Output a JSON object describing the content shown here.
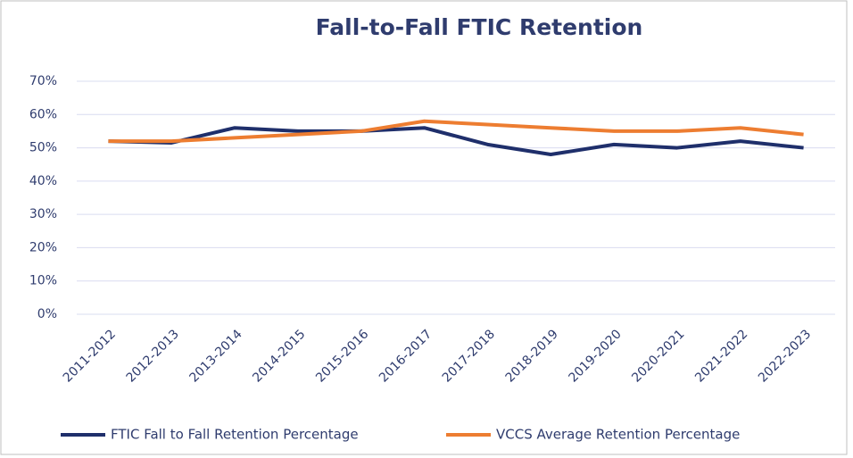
{
  "chart_data": {
    "type": "line",
    "title": "Fall-to-Fall FTIC Retention",
    "categories": [
      "2011-2012",
      "2012-2013",
      "2013-2014",
      "2014-2015",
      "2015-2016",
      "2016-2017",
      "2017-2018",
      "2018-2019",
      "2019-2020",
      "2020-2021",
      "2021-2022",
      "2022-2023"
    ],
    "series": [
      {
        "name": "FTIC Fall to Fall Retention Percentage",
        "color": "#1f2f6b",
        "values": [
          52,
          51.5,
          56,
          55,
          55,
          56,
          51,
          48,
          51,
          50,
          52,
          50
        ]
      },
      {
        "name": "VCCS Average Retention Percentage",
        "color": "#ed7d31",
        "values": [
          52,
          52,
          53,
          54,
          55,
          58,
          57,
          56,
          55,
          55,
          56,
          54
        ]
      }
    ],
    "ylim": [
      0,
      70
    ],
    "yticks": [
      {
        "value": 0,
        "label": "0%"
      },
      {
        "value": 10,
        "label": "10%"
      },
      {
        "value": 20,
        "label": "20%"
      },
      {
        "value": 30,
        "label": "30%"
      },
      {
        "value": 40,
        "label": "40%"
      },
      {
        "value": 50,
        "label": "50%"
      },
      {
        "value": 60,
        "label": "60%"
      },
      {
        "value": 70,
        "label": "70%"
      }
    ],
    "grid": true,
    "legend": "bottom"
  }
}
